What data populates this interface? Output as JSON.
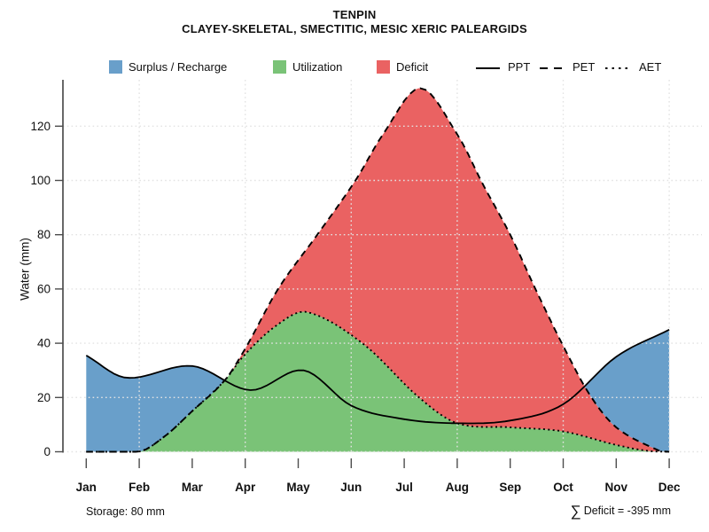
{
  "header": {
    "title": "TENPIN",
    "subtitle": "CLAYEY-SKELETAL, SMECTITIC, MESIC XERIC PALEARGIDS"
  },
  "legend": {
    "areas": [
      {
        "label": "Surplus / Recharge",
        "color": "#699fca"
      },
      {
        "label": "Utilization",
        "color": "#7ac377"
      },
      {
        "label": "Deficit",
        "color": "#ea6262"
      }
    ],
    "lines": [
      {
        "label": "PPT",
        "style": "solid"
      },
      {
        "label": "PET",
        "style": "dashed"
      },
      {
        "label": "AET",
        "style": "dotted"
      }
    ]
  },
  "footer": {
    "storage": "Storage: 80 mm",
    "deficit_sigma": "∑",
    "deficit_text": "Deficit = -395 mm"
  },
  "chart_data": {
    "type": "area",
    "title": "TENPIN",
    "subtitle": "CLAYEY-SKELETAL, SMECTITIC, MESIC XERIC PALEARGIDS",
    "ylabel": "Water (mm)",
    "xlabel": "",
    "categories": [
      "Jan",
      "Feb",
      "Mar",
      "Apr",
      "May",
      "Jun",
      "Jul",
      "Aug",
      "Sep",
      "Oct",
      "Nov",
      "Dec"
    ],
    "y_ticks": [
      0,
      20,
      40,
      60,
      80,
      100,
      120
    ],
    "ylim": [
      0,
      138
    ],
    "grid": "dotted, horizontal every 20 mm, vertical every second month",
    "legend_position": "top",
    "series": [
      {
        "name": "PPT",
        "line": "solid",
        "monthly": [
          35.5,
          28,
          31.5,
          23,
          30,
          17,
          12,
          10.5,
          11.5,
          17.5,
          35,
          45
        ],
        "points": [
          [
            0,
            35.5
          ],
          [
            0.75,
            27.3
          ],
          [
            2,
            31.6
          ],
          [
            3.1,
            22.7
          ],
          [
            4.1,
            30
          ],
          [
            5,
            17
          ],
          [
            6,
            12
          ],
          [
            7,
            10.5
          ],
          [
            8,
            11.5
          ],
          [
            9,
            17.5
          ],
          [
            10,
            35
          ],
          [
            11,
            45
          ]
        ]
      },
      {
        "name": "PET",
        "line": "dashed",
        "monthly": [
          0,
          0,
          15,
          38,
          66,
          98,
          131,
          117,
          80,
          39,
          9,
          0
        ],
        "points": [
          [
            0,
            0
          ],
          [
            1,
            0
          ],
          [
            1.5,
            6
          ],
          [
            2,
            15
          ],
          [
            2.6,
            26
          ],
          [
            3,
            38
          ],
          [
            3.62,
            60
          ],
          [
            4.36,
            80
          ],
          [
            5.08,
            100
          ],
          [
            5.6,
            117
          ],
          [
            6.3,
            134
          ],
          [
            7,
            117
          ],
          [
            7.5,
            98
          ],
          [
            8,
            80
          ],
          [
            8.5,
            59
          ],
          [
            9,
            39
          ],
          [
            9.5,
            21
          ],
          [
            10,
            9
          ],
          [
            10.8,
            0.5
          ],
          [
            11,
            0
          ]
        ]
      },
      {
        "name": "AET",
        "line": "dotted",
        "monthly": [
          0,
          0,
          15,
          36,
          50.5,
          43,
          24.5,
          10.5,
          9,
          7.5,
          2.5,
          0
        ],
        "points": [
          [
            0,
            0
          ],
          [
            1,
            0
          ],
          [
            1.5,
            6
          ],
          [
            2,
            15
          ],
          [
            2.6,
            26
          ],
          [
            3,
            36
          ],
          [
            3.62,
            47
          ],
          [
            4.16,
            51.5
          ],
          [
            5.21,
            40
          ],
          [
            6.28,
            20
          ],
          [
            7,
            10.5
          ],
          [
            8,
            9
          ],
          [
            9,
            7.5
          ],
          [
            10,
            2.5
          ],
          [
            10.6,
            0.3
          ],
          [
            11,
            0
          ]
        ]
      }
    ],
    "areas": [
      {
        "name": "Surplus / Recharge",
        "color": "#699fca",
        "rule": "between PET and PPT where PPT > PET"
      },
      {
        "name": "Utilization",
        "color": "#7ac377",
        "rule": "between 0 and AET"
      },
      {
        "name": "Deficit",
        "color": "#ea6262",
        "rule": "between AET and PET where PET > AET"
      }
    ],
    "annotations": {
      "storage_mm": 80,
      "deficit_sum_mm": -395
    }
  }
}
